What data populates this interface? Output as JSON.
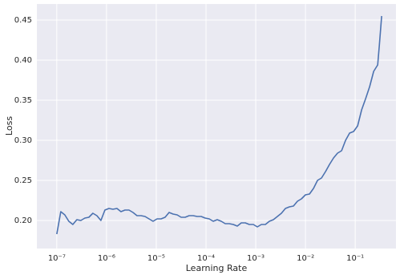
{
  "chart_data": {
    "type": "line",
    "xlabel": "Learning Rate",
    "ylabel": "Loss",
    "xscale": "log",
    "grid": true,
    "background": "#eaeaf2",
    "x": [
      1e-07,
      1.204e-07,
      1.45e-07,
      1.746e-07,
      2.102e-07,
      2.531e-07,
      3.047e-07,
      3.668e-07,
      4.417e-07,
      5.318e-07,
      6.403e-07,
      7.709e-07,
      9.284e-07,
      1.118e-06,
      1.346e-06,
      1.621e-06,
      1.951e-06,
      2.35e-06,
      2.829e-06,
      3.406e-06,
      4.101e-06,
      4.937e-06,
      5.945e-06,
      7.158e-06,
      8.619e-06,
      1.038e-05,
      1.25e-05,
      1.505e-05,
      1.812e-05,
      2.182e-05,
      2.627e-05,
      3.162e-05,
      3.807e-05,
      4.585e-05,
      5.52e-05,
      6.646e-05,
      8.003e-05,
      9.636e-05,
      0.000116,
      0.0001397,
      0.0001682,
      0.0002025,
      0.0002439,
      0.0002936,
      0.0003535,
      0.0004257,
      0.0005125,
      0.0006171,
      0.000743,
      0.0008946,
      0.001077,
      0.001297,
      0.001562,
      0.00188,
      0.002264,
      0.002726,
      0.003282,
      0.003952,
      0.004758,
      0.005729,
      0.006898,
      0.008306,
      0.01,
      0.01204,
      0.0145,
      0.01746,
      0.02102,
      0.02531,
      0.03047,
      0.03668,
      0.04417,
      0.05318,
      0.06403,
      0.07709,
      0.09284,
      0.1118,
      0.1346,
      0.1621,
      0.1951,
      0.235,
      0.2829,
      0.305,
      0.34
    ],
    "series": [
      {
        "name": "Loss",
        "color": "#4c72b0",
        "values": [
          0.183,
          0.211,
          0.207,
          0.199,
          0.195,
          0.201,
          0.2,
          0.203,
          0.204,
          0.209,
          0.206,
          0.2,
          0.213,
          0.215,
          0.214,
          0.215,
          0.211,
          0.213,
          0.213,
          0.21,
          0.206,
          0.206,
          0.205,
          0.202,
          0.199,
          0.202,
          0.202,
          0.204,
          0.21,
          0.208,
          0.207,
          0.204,
          0.204,
          0.206,
          0.206,
          0.205,
          0.205,
          0.203,
          0.202,
          0.199,
          0.201,
          0.199,
          0.196,
          0.196,
          0.195,
          0.193,
          0.197,
          0.197,
          0.195,
          0.195,
          0.192,
          0.195,
          0.195,
          0.199,
          0.201,
          0.205,
          0.209,
          0.215,
          0.217,
          0.218,
          0.224,
          0.227,
          0.232,
          0.233,
          0.24,
          0.25,
          0.253,
          0.261,
          0.27,
          0.278,
          0.284,
          0.287,
          0.3,
          0.309,
          0.311,
          0.318,
          0.338,
          0.352,
          0.367,
          0.386,
          0.394,
          0.418,
          0.455
        ]
      }
    ],
    "xlim": [
      3.98e-08,
      0.66
    ],
    "xticks": [
      {
        "value": 1e-07,
        "label": "10⁻⁷"
      },
      {
        "value": 1e-06,
        "label": "10⁻⁶"
      },
      {
        "value": 1e-05,
        "label": "10⁻⁵"
      },
      {
        "value": 0.0001,
        "label": "10⁻⁴"
      },
      {
        "value": 0.001,
        "label": "10⁻³"
      },
      {
        "value": 0.01,
        "label": "10⁻²"
      },
      {
        "value": 0.1,
        "label": "10⁻¹"
      }
    ],
    "ylim": [
      0.165,
      0.47
    ],
    "yticks": [
      {
        "value": 0.2,
        "label": "0.20"
      },
      0.25,
      {
        "value": 0.3,
        "label": "0.30"
      },
      0.35,
      {
        "value": 0.4,
        "label": "0.40"
      },
      0.45
    ]
  }
}
